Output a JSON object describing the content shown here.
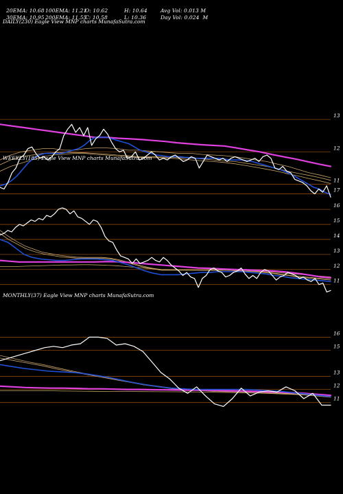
{
  "header": {
    "row1": [
      {
        "label": "20EMA: 10.68"
      },
      {
        "label": "100EMA: 11.21"
      },
      {
        "label": "O: 10.62"
      },
      {
        "label": "H: 10.64"
      },
      {
        "label": "Avg Vol: 0.013 M"
      }
    ],
    "row2": [
      {
        "label": "30EMA: 10.95"
      },
      {
        "label": "200EMA: 11.55"
      },
      {
        "label": "C: 10.58"
      },
      {
        "label": "L: 10.36"
      },
      {
        "label": "Day Vol: 0.024  M"
      }
    ]
  },
  "colors": {
    "background": "#000000",
    "price": "#ffffff",
    "ema_fast": "#1f4fd6",
    "ema_long": "#e040e0",
    "ema_band": "#c9a46a",
    "gridline": "#8a4a10"
  },
  "chart_data": [
    {
      "type": "line",
      "title": "DAILY(230) Eagle  View  MNP charts MunafaSutra.com",
      "ylim": [
        10.5,
        13.3
      ],
      "yticks": [
        13,
        12,
        11
      ],
      "extra_labels": [
        {
          "text": "17",
          "y": 10.7
        }
      ],
      "series": [
        {
          "role": "price",
          "values": [
            10.9,
            10.85,
            11.05,
            11.35,
            11.5,
            11.8,
            11.9,
            12.1,
            12.15,
            11.95,
            11.8,
            11.85,
            11.75,
            11.85,
            12.0,
            12.1,
            12.5,
            12.7,
            12.85,
            12.6,
            12.75,
            12.5,
            12.75,
            12.2,
            12.4,
            12.5,
            12.7,
            12.55,
            12.3,
            12.1,
            12.0,
            12.05,
            11.8,
            11.85,
            12.0,
            11.75,
            11.8,
            11.9,
            12.0,
            11.9,
            11.75,
            11.8,
            11.75,
            11.85,
            11.9,
            11.8,
            11.7,
            11.75,
            11.85,
            11.8,
            11.5,
            11.7,
            11.9,
            11.85,
            11.8,
            11.75,
            11.8,
            11.7,
            11.8,
            11.85,
            11.8,
            11.75,
            11.7,
            11.75,
            11.8,
            11.7,
            11.85,
            11.9,
            11.8,
            11.5,
            11.45,
            11.55,
            11.4,
            11.35,
            11.15,
            11.1,
            11.05,
            10.95,
            10.8,
            10.7,
            10.85,
            10.75,
            10.95,
            10.6
          ]
        },
        {
          "role": "ema_fast",
          "values": [
            10.95,
            11.0,
            11.1,
            11.25,
            11.45,
            11.65,
            11.8,
            11.9,
            11.95,
            11.95,
            11.95,
            11.95,
            12.0,
            12.05,
            12.1,
            12.2,
            12.35,
            12.45,
            12.45,
            12.45,
            12.4,
            12.35,
            12.3,
            12.25,
            12.15,
            12.05,
            12.0,
            11.95,
            11.9,
            11.88,
            11.85,
            11.85,
            11.85,
            11.83,
            11.82,
            11.8,
            11.8,
            11.8,
            11.8,
            11.8,
            11.78,
            11.75,
            11.75,
            11.75,
            11.73,
            11.7,
            11.65,
            11.6,
            11.55,
            11.5,
            11.45,
            11.38,
            11.3,
            11.2,
            11.1,
            11.0,
            10.9,
            10.85,
            10.75,
            10.68
          ]
        },
        {
          "role": "ema_long",
          "values": [
            12.85,
            12.8,
            12.75,
            12.7,
            12.65,
            12.6,
            12.55,
            12.5,
            12.45,
            12.45,
            12.42,
            12.4,
            12.38,
            12.35,
            12.32,
            12.28,
            12.25,
            12.22,
            12.2,
            12.18,
            12.12,
            12.06,
            12.0,
            11.92,
            11.85,
            11.78,
            11.7,
            11.62,
            11.55
          ]
        },
        {
          "role": "ema_band",
          "values": [
            11.75,
            11.9,
            12.0,
            12.05,
            12.1,
            12.1,
            12.05,
            12.05,
            12.1,
            12.12,
            12.12,
            12.1,
            12.05,
            12.05,
            12.02,
            12.0,
            11.97,
            11.95,
            11.95,
            11.92,
            11.9,
            11.88,
            11.85,
            11.8,
            11.75,
            11.7,
            11.62,
            11.55,
            11.45,
            11.35,
            11.28,
            11.2
          ]
        },
        {
          "role": "ema_band",
          "values": [
            11.6,
            11.75,
            11.85,
            11.9,
            11.95,
            11.97,
            11.98,
            11.98,
            11.97,
            11.95,
            11.93,
            11.9,
            11.88,
            11.85,
            11.85,
            11.84,
            11.83,
            11.82,
            11.8,
            11.78,
            11.75,
            11.72,
            11.7,
            11.65,
            11.6,
            11.55,
            11.48,
            11.4,
            11.33,
            11.27,
            11.2,
            11.12
          ]
        },
        {
          "role": "ema_band",
          "values": [
            11.4,
            11.55,
            11.65,
            11.75,
            11.85,
            11.9,
            11.93,
            11.95,
            11.95,
            11.92,
            11.9,
            11.87,
            11.85,
            11.83,
            11.82,
            11.82,
            11.8,
            11.78,
            11.75,
            11.72,
            11.7,
            11.67,
            11.63,
            11.58,
            11.52,
            11.46,
            11.4,
            11.32,
            11.25,
            11.17,
            11.1,
            11.02
          ]
        }
      ]
    },
    {
      "type": "line",
      "title": "WEEKLY(185) Eagle  View  MNP charts MunafaSutra.com",
      "ylim": [
        10.3,
        16.6
      ],
      "yticks": [
        16,
        15,
        14,
        13,
        12,
        11
      ],
      "series": [
        {
          "role": "price",
          "values": [
            14.3,
            14.4,
            14.6,
            14.5,
            14.8,
            15.0,
            14.9,
            15.1,
            15.3,
            15.2,
            15.4,
            15.3,
            15.6,
            15.5,
            15.7,
            16.0,
            16.1,
            16.0,
            15.7,
            15.9,
            15.5,
            15.4,
            15.2,
            15.0,
            15.3,
            15.2,
            14.8,
            14.2,
            13.9,
            13.8,
            13.3,
            12.9,
            12.8,
            12.7,
            12.4,
            12.7,
            12.4,
            12.5,
            12.6,
            12.8,
            12.6,
            12.5,
            12.8,
            12.6,
            12.3,
            12.1,
            11.9,
            11.6,
            11.8,
            11.5,
            11.4,
            10.8,
            11.4,
            11.6,
            12.0,
            12.1,
            11.9,
            11.8,
            11.5,
            11.6,
            11.8,
            11.9,
            12.1,
            11.7,
            11.4,
            11.6,
            11.4,
            11.8,
            12.0,
            11.9,
            11.6,
            11.3,
            11.5,
            11.6,
            11.8,
            11.7,
            11.6,
            11.4,
            11.5,
            11.3,
            11.2,
            11.4,
            11.0,
            11.1,
            10.5,
            10.6
          ]
        },
        {
          "role": "ema_fast",
          "values": [
            14.0,
            13.8,
            13.4,
            13.0,
            12.8,
            12.7,
            12.65,
            12.6,
            12.6,
            12.65,
            12.7,
            12.7,
            12.7,
            12.65,
            12.6,
            12.45,
            12.3,
            12.1,
            11.9,
            11.75,
            11.65,
            11.65,
            11.65,
            11.7,
            11.75,
            11.8,
            11.8,
            11.85,
            11.85,
            11.85,
            11.85,
            11.8,
            11.75,
            11.7,
            11.6,
            11.55,
            11.45,
            11.4,
            11.35,
            11.3,
            11.25,
            11.2
          ]
        },
        {
          "role": "ema_long",
          "values": [
            12.6,
            12.55,
            12.5,
            12.5,
            12.5,
            12.5,
            12.5,
            12.5,
            12.5,
            12.5,
            12.5,
            12.52,
            12.52,
            12.5,
            12.45,
            12.4,
            12.35,
            12.3,
            12.25,
            12.2,
            12.15,
            12.1,
            12.08,
            12.05,
            12.02,
            12.0,
            11.98,
            11.95,
            11.92,
            11.9,
            11.85,
            11.78,
            11.7,
            11.6,
            11.5,
            11.45
          ]
        },
        {
          "role": "ema_band",
          "values": [
            14.4,
            14.0,
            13.7,
            13.4,
            13.2,
            13.05,
            12.95,
            12.85,
            12.8,
            12.75,
            12.75,
            12.75,
            12.75,
            12.7,
            12.6,
            12.45,
            12.3,
            12.15,
            12.05,
            11.95,
            11.95,
            11.95,
            11.95,
            11.95,
            11.95,
            11.95,
            11.95,
            11.95,
            11.9,
            11.88,
            11.85,
            11.8,
            11.75,
            11.65,
            11.6,
            11.5,
            11.45,
            11.4,
            11.35,
            11.3
          ]
        },
        {
          "role": "ema_band",
          "values": [
            14.6,
            14.2,
            13.85,
            13.55,
            13.35,
            13.15,
            13.05,
            12.95,
            12.88,
            12.82,
            12.8,
            12.8,
            12.8,
            12.75,
            12.65,
            12.5,
            12.35,
            12.2,
            12.08,
            12.0,
            11.98,
            11.98,
            11.98,
            11.97,
            11.97,
            11.97,
            11.97,
            11.95,
            11.92,
            11.9,
            11.87,
            11.82,
            11.78,
            11.7,
            11.63,
            11.55,
            11.5,
            11.45,
            11.4,
            11.35
          ]
        },
        {
          "role": "ema_band",
          "values": [
            12.2,
            12.2,
            12.2,
            12.22,
            12.24,
            12.26,
            12.28,
            12.3,
            12.3,
            12.32,
            12.32,
            12.3,
            12.28,
            12.25,
            12.2,
            12.15,
            12.1,
            12.05,
            12.0,
            11.98,
            11.97,
            11.96,
            11.96,
            11.95,
            11.95,
            11.95,
            11.94,
            11.92,
            11.9,
            11.88,
            11.85,
            11.8,
            11.75,
            11.7,
            11.65,
            11.6,
            11.55,
            11.5
          ]
        }
      ]
    },
    {
      "type": "line",
      "title": "MONTHLY(37) Eagle  View  MNP charts MunafaSutra.com",
      "ylim": [
        10.3,
        16.6
      ],
      "yticks": [
        16,
        15,
        13,
        12,
        11
      ],
      "series": [
        {
          "role": "price",
          "values": [
            14.2,
            14.4,
            14.6,
            14.8,
            15.0,
            15.2,
            15.3,
            15.2,
            15.4,
            15.5,
            16.0,
            16.0,
            15.9,
            15.4,
            15.5,
            15.3,
            14.9,
            14.1,
            13.3,
            12.8,
            12.1,
            11.7,
            12.2,
            11.5,
            10.9,
            10.7,
            11.3,
            12.1,
            11.5,
            11.8,
            11.9,
            11.8,
            12.2,
            11.9,
            11.3,
            11.7,
            10.8,
            10.8
          ]
        },
        {
          "role": "ema_fast",
          "values": [
            13.9,
            13.75,
            13.6,
            13.5,
            13.4,
            13.35,
            13.3,
            13.2,
            13.05,
            12.9,
            12.7,
            12.5,
            12.35,
            12.2,
            12.1,
            12.05,
            12.0,
            12.0,
            12.0,
            12.0,
            12.0,
            11.95,
            11.9,
            11.85,
            11.75,
            11.65,
            11.55,
            11.45
          ]
        },
        {
          "role": "ema_long",
          "values": [
            12.25,
            12.2,
            12.15,
            12.12,
            12.1,
            12.1,
            12.08,
            12.05,
            12.05,
            12.02,
            12.0,
            12.0,
            11.98,
            11.97,
            11.96,
            11.95,
            11.95,
            11.93,
            11.9,
            11.88,
            11.85,
            11.82,
            11.8,
            11.75,
            11.7,
            11.62,
            11.55
          ]
        },
        {
          "role": "ema_band",
          "values": [
            14.4,
            14.2,
            14.0,
            13.8,
            13.55,
            13.35,
            13.15,
            12.95,
            12.75,
            12.55,
            12.35,
            12.2,
            12.05,
            11.95,
            11.9,
            11.85,
            11.83,
            11.8,
            11.77,
            11.72,
            11.67,
            11.6,
            11.5,
            11.4
          ]
        },
        {
          "role": "ema_band",
          "values": [
            14.6,
            14.35,
            14.1,
            13.9,
            13.65,
            13.42,
            13.2,
            13.0,
            12.8,
            12.6,
            12.4,
            12.25,
            12.1,
            12.0,
            11.95,
            11.9,
            11.87,
            11.84,
            11.8,
            11.75,
            11.7,
            11.62,
            11.52,
            11.42
          ]
        },
        {
          "role": "ema_band",
          "values": [
            11.9,
            11.9,
            11.9,
            11.9,
            11.88,
            11.87,
            11.86,
            11.85,
            11.85,
            11.84,
            11.83,
            11.82,
            11.81,
            11.8,
            11.78,
            11.76,
            11.73,
            11.7,
            11.65,
            11.6,
            11.55,
            11.5
          ]
        }
      ]
    }
  ]
}
